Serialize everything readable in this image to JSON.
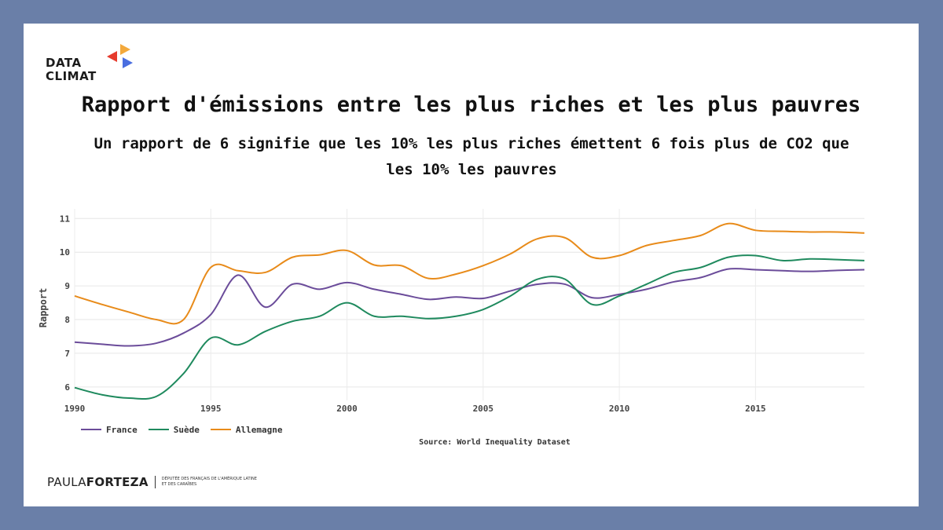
{
  "logo": {
    "line1": "DATA",
    "line2": "CLIMAT",
    "colors": [
      "#e63b2e",
      "#f3a93c",
      "#4a6ee0"
    ]
  },
  "title": "Rapport d'émissions entre les plus riches et les plus pauvres",
  "subtitle": "Un rapport de 6 signifie que les 10% les plus riches émettent 6 fois plus de CO2 que les 10% les pauvres",
  "chart_data": {
    "type": "line",
    "ylabel": "Rapport",
    "xlabel": "",
    "xlim": [
      1990,
      2019
    ],
    "ylim": [
      5.6,
      11.1
    ],
    "x_ticks": [
      1990,
      1995,
      2000,
      2005,
      2010,
      2015
    ],
    "y_ticks": [
      6,
      7,
      8,
      9,
      10,
      11
    ],
    "grid": true,
    "legend_position": "bottom-left",
    "x": [
      1990,
      1991,
      1992,
      1993,
      1994,
      1995,
      1996,
      1997,
      1998,
      1999,
      2000,
      2001,
      2002,
      2003,
      2004,
      2005,
      2006,
      2007,
      2008,
      2009,
      2010,
      2011,
      2012,
      2013,
      2014,
      2015,
      2016,
      2017,
      2018,
      2019
    ],
    "series": [
      {
        "name": "France",
        "color": "#6b4c9a",
        "values": [
          7.33,
          7.27,
          7.22,
          7.3,
          7.6,
          8.15,
          9.32,
          8.37,
          9.05,
          8.9,
          9.1,
          8.9,
          8.75,
          8.6,
          8.67,
          8.63,
          8.85,
          9.05,
          9.05,
          8.65,
          8.75,
          8.9,
          9.12,
          9.25,
          9.5,
          9.48,
          9.45,
          9.43,
          9.46,
          9.48
        ]
      },
      {
        "name": "Suède",
        "color": "#1f8a5e",
        "values": [
          5.98,
          5.77,
          5.67,
          5.72,
          6.4,
          7.45,
          7.25,
          7.65,
          7.95,
          8.1,
          8.5,
          8.1,
          8.1,
          8.03,
          8.1,
          8.3,
          8.7,
          9.2,
          9.2,
          8.45,
          8.7,
          9.05,
          9.4,
          9.55,
          9.85,
          9.9,
          9.75,
          9.8,
          9.78,
          9.75
        ]
      },
      {
        "name": "Allemagne",
        "color": "#e88b1a",
        "values": [
          8.7,
          8.45,
          8.22,
          8.0,
          8.0,
          9.55,
          9.45,
          9.4,
          9.85,
          9.92,
          10.05,
          9.62,
          9.6,
          9.22,
          9.35,
          9.6,
          9.95,
          10.4,
          10.43,
          9.85,
          9.9,
          10.2,
          10.35,
          10.5,
          10.85,
          10.65,
          10.62,
          10.6,
          10.6,
          10.57
        ]
      }
    ]
  },
  "source": "Source: World Inequality Dataset",
  "footer": {
    "name_light": "PAULA",
    "name_bold": "FORTEZA",
    "sub_line1": "Députée des Français de l'Amérique latine",
    "sub_line2": "et des Caraïbes"
  }
}
